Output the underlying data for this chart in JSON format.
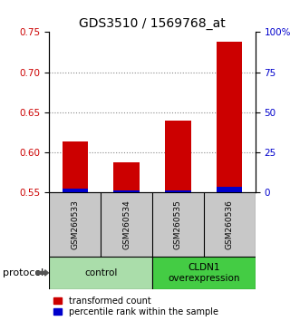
{
  "title": "GDS3510 / 1569768_at",
  "samples": [
    "GSM260533",
    "GSM260534",
    "GSM260535",
    "GSM260536"
  ],
  "red_values": [
    0.614,
    0.588,
    0.64,
    0.738
  ],
  "blue_pct": [
    2.5,
    1.5,
    1.5,
    3.5
  ],
  "ylim_left": [
    0.55,
    0.75
  ],
  "ylim_right": [
    0,
    100
  ],
  "yticks_left": [
    0.55,
    0.6,
    0.65,
    0.7,
    0.75
  ],
  "yticks_right": [
    0,
    25,
    50,
    75,
    100
  ],
  "ytick_labels_right": [
    "0",
    "25",
    "50",
    "75",
    "100%"
  ],
  "bar_width": 0.5,
  "red_color": "#cc0000",
  "blue_color": "#0000cc",
  "protocol_groups": [
    {
      "label": "control",
      "indices": [
        0,
        1
      ],
      "color": "#aaddaa"
    },
    {
      "label": "CLDN1\noverexpression",
      "indices": [
        2,
        3
      ],
      "color": "#44cc44"
    }
  ],
  "protocol_label": "protocol",
  "legend_red": "transformed count",
  "legend_blue": "percentile rank within the sample",
  "grid_color": "#888888",
  "sample_box_bg": "#c8c8c8",
  "title_fontsize": 10,
  "tick_fontsize": 7.5,
  "legend_fontsize": 7,
  "sample_fontsize": 6.5,
  "proto_fontsize": 7.5
}
